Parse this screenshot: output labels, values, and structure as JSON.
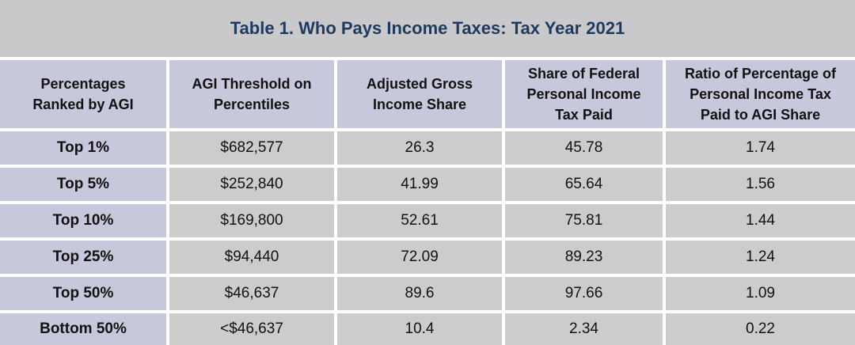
{
  "title": "Table 1. Who Pays Income Taxes: Tax Year 2021",
  "headers": [
    [
      "Percentages",
      "Ranked by AGI"
    ],
    [
      "AGI Threshold on",
      "Percentiles"
    ],
    [
      "Adjusted Gross",
      "Income Share"
    ],
    [
      "Share of Federal",
      "Personal Income",
      "Tax Paid"
    ],
    [
      "Ratio of Percentage of",
      "Personal Income Tax",
      "Paid to AGI Share"
    ]
  ],
  "rows": [
    [
      "Top 1%",
      "$682,577",
      "26.3",
      "45.78",
      "1.74"
    ],
    [
      "Top 5%",
      "$252,840",
      "41.99",
      "65.64",
      "1.56"
    ],
    [
      "Top 10%",
      "$169,800",
      "52.61",
      "75.81",
      "1.44"
    ],
    [
      "Top 25%",
      "$94,440",
      "72.09",
      "89.23",
      "1.24"
    ],
    [
      "Top 50%",
      "$46,637",
      "89.6",
      "97.66",
      "1.09"
    ],
    [
      "Bottom 50%",
      "<$46,637",
      "10.4",
      "2.34",
      "0.22"
    ]
  ],
  "colors": {
    "title_bg": "#c9c9cb",
    "title_text": "#1f3a5f",
    "header_bg": "#c8c8dc",
    "cell_bg": "#cccccc"
  }
}
